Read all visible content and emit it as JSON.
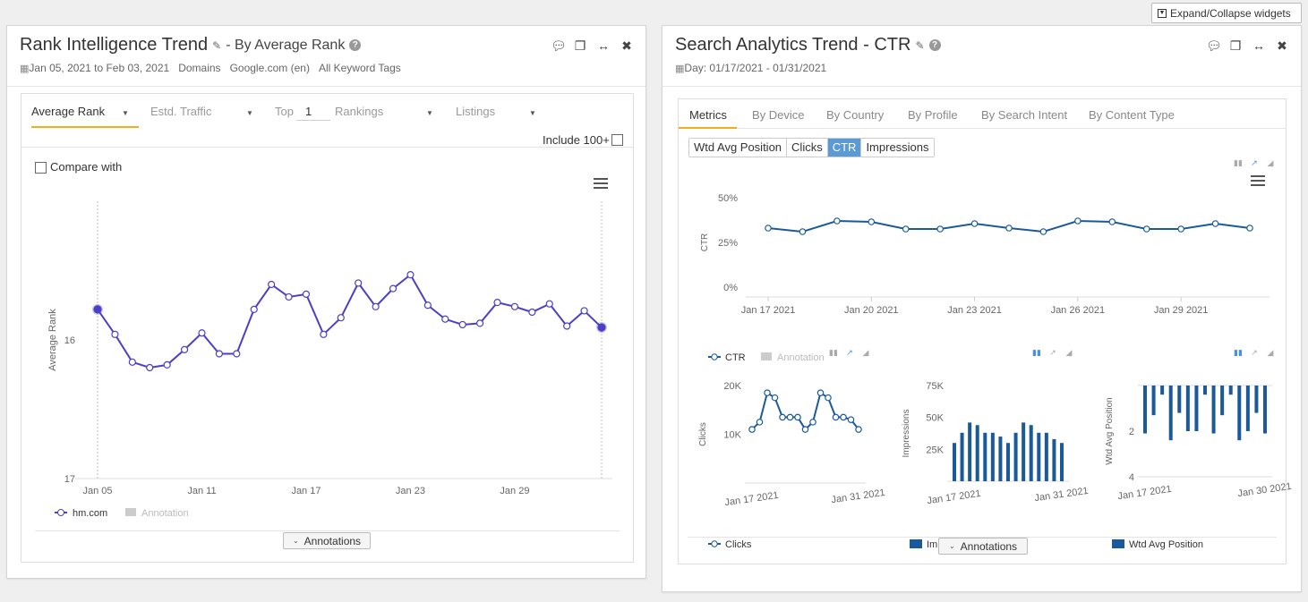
{
  "toolbar": {
    "expand_label": "Expand/Collapse widgets"
  },
  "widget1": {
    "title": "Rank Intelligence Trend",
    "subtitle": "- By Average Rank",
    "meta": {
      "date_range": "Jan 05, 2021 to Feb 03, 2021",
      "domains": "Domains",
      "engine": "Google.com (en)",
      "tags": "All Keyword Tags"
    },
    "controls": {
      "metric": "Average Rank",
      "traffic": "Estd. Traffic",
      "top_label": "Top",
      "top_value": "1",
      "rankings": "Rankings",
      "listings": "Listings",
      "include": "Include 100+",
      "compare": "Compare with"
    },
    "annotations_button": "Annotations",
    "legend": {
      "series": "hm.com",
      "annotation": "Annotation"
    }
  },
  "widget2": {
    "title": "Search Analytics Trend - CTR",
    "meta": {
      "date_range": "Day: 01/17/2021 - 01/31/2021"
    },
    "tabs": [
      "Metrics",
      "By Device",
      "By Country",
      "By Profile",
      "By Search Intent",
      "By Content Type"
    ],
    "metric_buttons": [
      "Wtd Avg Position",
      "Clicks",
      "CTR",
      "Impressions"
    ],
    "selected_metric": "CTR",
    "legend": {
      "ctr": "CTR",
      "annotation": "Annotation",
      "clicks": "Clicks",
      "impressions": "Impressions",
      "position": "Wtd Avg Position"
    },
    "annotations_button": "Annotations"
  },
  "colors": {
    "rank_line": "#4b3fc6",
    "sa_blue": "#1a5a9a",
    "accent": "#f0ad1e",
    "selected": "#5b9bd5"
  },
  "chart_data": [
    {
      "id": "rank",
      "type": "line",
      "ylabel": "Average Rank",
      "y_ticks": [
        "16",
        "17"
      ],
      "x_ticks": [
        "Jan 05",
        "Jan 11",
        "Jan 17",
        "Jan 23",
        "Jan 29"
      ],
      "ylim": [
        15.0,
        17.0
      ],
      "y_inverted": true,
      "x": [
        "Jan 05",
        "Jan 06",
        "Jan 07",
        "Jan 08",
        "Jan 09",
        "Jan 10",
        "Jan 11",
        "Jan 12",
        "Jan 13",
        "Jan 14",
        "Jan 15",
        "Jan 16",
        "Jan 17",
        "Jan 18",
        "Jan 19",
        "Jan 20",
        "Jan 21",
        "Jan 22",
        "Jan 23",
        "Jan 24",
        "Jan 25",
        "Jan 26",
        "Jan 27",
        "Jan 28",
        "Jan 29",
        "Jan 30",
        "Jan 31",
        "Feb 01",
        "Feb 02",
        "Feb 03"
      ],
      "series": [
        {
          "name": "hm.com",
          "values": [
            15.78,
            15.96,
            16.16,
            16.2,
            16.18,
            16.07,
            15.95,
            16.1,
            16.1,
            15.78,
            15.6,
            15.69,
            15.67,
            15.96,
            15.84,
            15.59,
            15.76,
            15.63,
            15.53,
            15.75,
            15.85,
            15.89,
            15.88,
            15.73,
            15.76,
            15.8,
            15.74,
            15.9,
            15.79,
            15.91
          ]
        }
      ]
    },
    {
      "id": "ctr",
      "type": "line",
      "ylabel": "CTR",
      "y_ticks": [
        "0%",
        "25%",
        "50%"
      ],
      "x_ticks": [
        "Jan 17 2021",
        "Jan 20 2021",
        "Jan 23 2021",
        "Jan 26 2021",
        "Jan 29 2021"
      ],
      "ylim": [
        0,
        50
      ],
      "x": [
        "Jan 17",
        "Jan 18",
        "Jan 19",
        "Jan 20",
        "Jan 21",
        "Jan 22",
        "Jan 23",
        "Jan 24",
        "Jan 25",
        "Jan 26",
        "Jan 27",
        "Jan 28",
        "Jan 29",
        "Jan 30",
        "Jan 31"
      ],
      "series": [
        {
          "name": "CTR",
          "values": [
            33,
            31,
            37,
            36.5,
            32.5,
            32.5,
            35.5,
            33,
            31,
            37,
            36.5,
            32.5,
            32.5,
            35.5,
            33
          ]
        }
      ]
    },
    {
      "id": "clicks",
      "type": "line",
      "ylabel": "Clicks",
      "y_ticks": [
        "10K",
        "20K"
      ],
      "x_ticks": [
        "Jan 17 2021",
        "Jan 31 2021"
      ],
      "ylim": [
        0,
        20000
      ],
      "series": [
        {
          "name": "Clicks",
          "values": [
            11000,
            12500,
            18500,
            17500,
            13500,
            13500,
            13500,
            11000,
            12500,
            18500,
            17500,
            13500,
            13500,
            13000,
            11000
          ]
        }
      ]
    },
    {
      "id": "impressions",
      "type": "bar",
      "ylabel": "Impressions",
      "y_ticks": [
        "25K",
        "50K",
        "75K"
      ],
      "x_ticks": [
        "Jan 17 2021",
        "Jan 31 2021"
      ],
      "ylim": [
        0,
        75000
      ],
      "series": [
        {
          "name": "Impressions",
          "values": [
            30000,
            38000,
            46000,
            44000,
            38000,
            38000,
            35000,
            30000,
            38000,
            46000,
            44000,
            38000,
            38000,
            33000,
            30000
          ]
        }
      ]
    },
    {
      "id": "position",
      "type": "bar",
      "ylabel": "Wtd Avg Position",
      "y_ticks": [
        "2",
        "4"
      ],
      "x_ticks": [
        "Jan 17 2021",
        "Jan 30 2021"
      ],
      "ylim": [
        0,
        4
      ],
      "y_inverted": true,
      "series": [
        {
          "name": "Wtd Avg Position",
          "values": [
            2.1,
            1.3,
            0.4,
            2.4,
            1.2,
            2.0,
            2.0,
            0.4,
            2.1,
            1.3,
            0.4,
            2.4,
            2.0,
            1.2,
            2.1
          ]
        }
      ]
    }
  ]
}
